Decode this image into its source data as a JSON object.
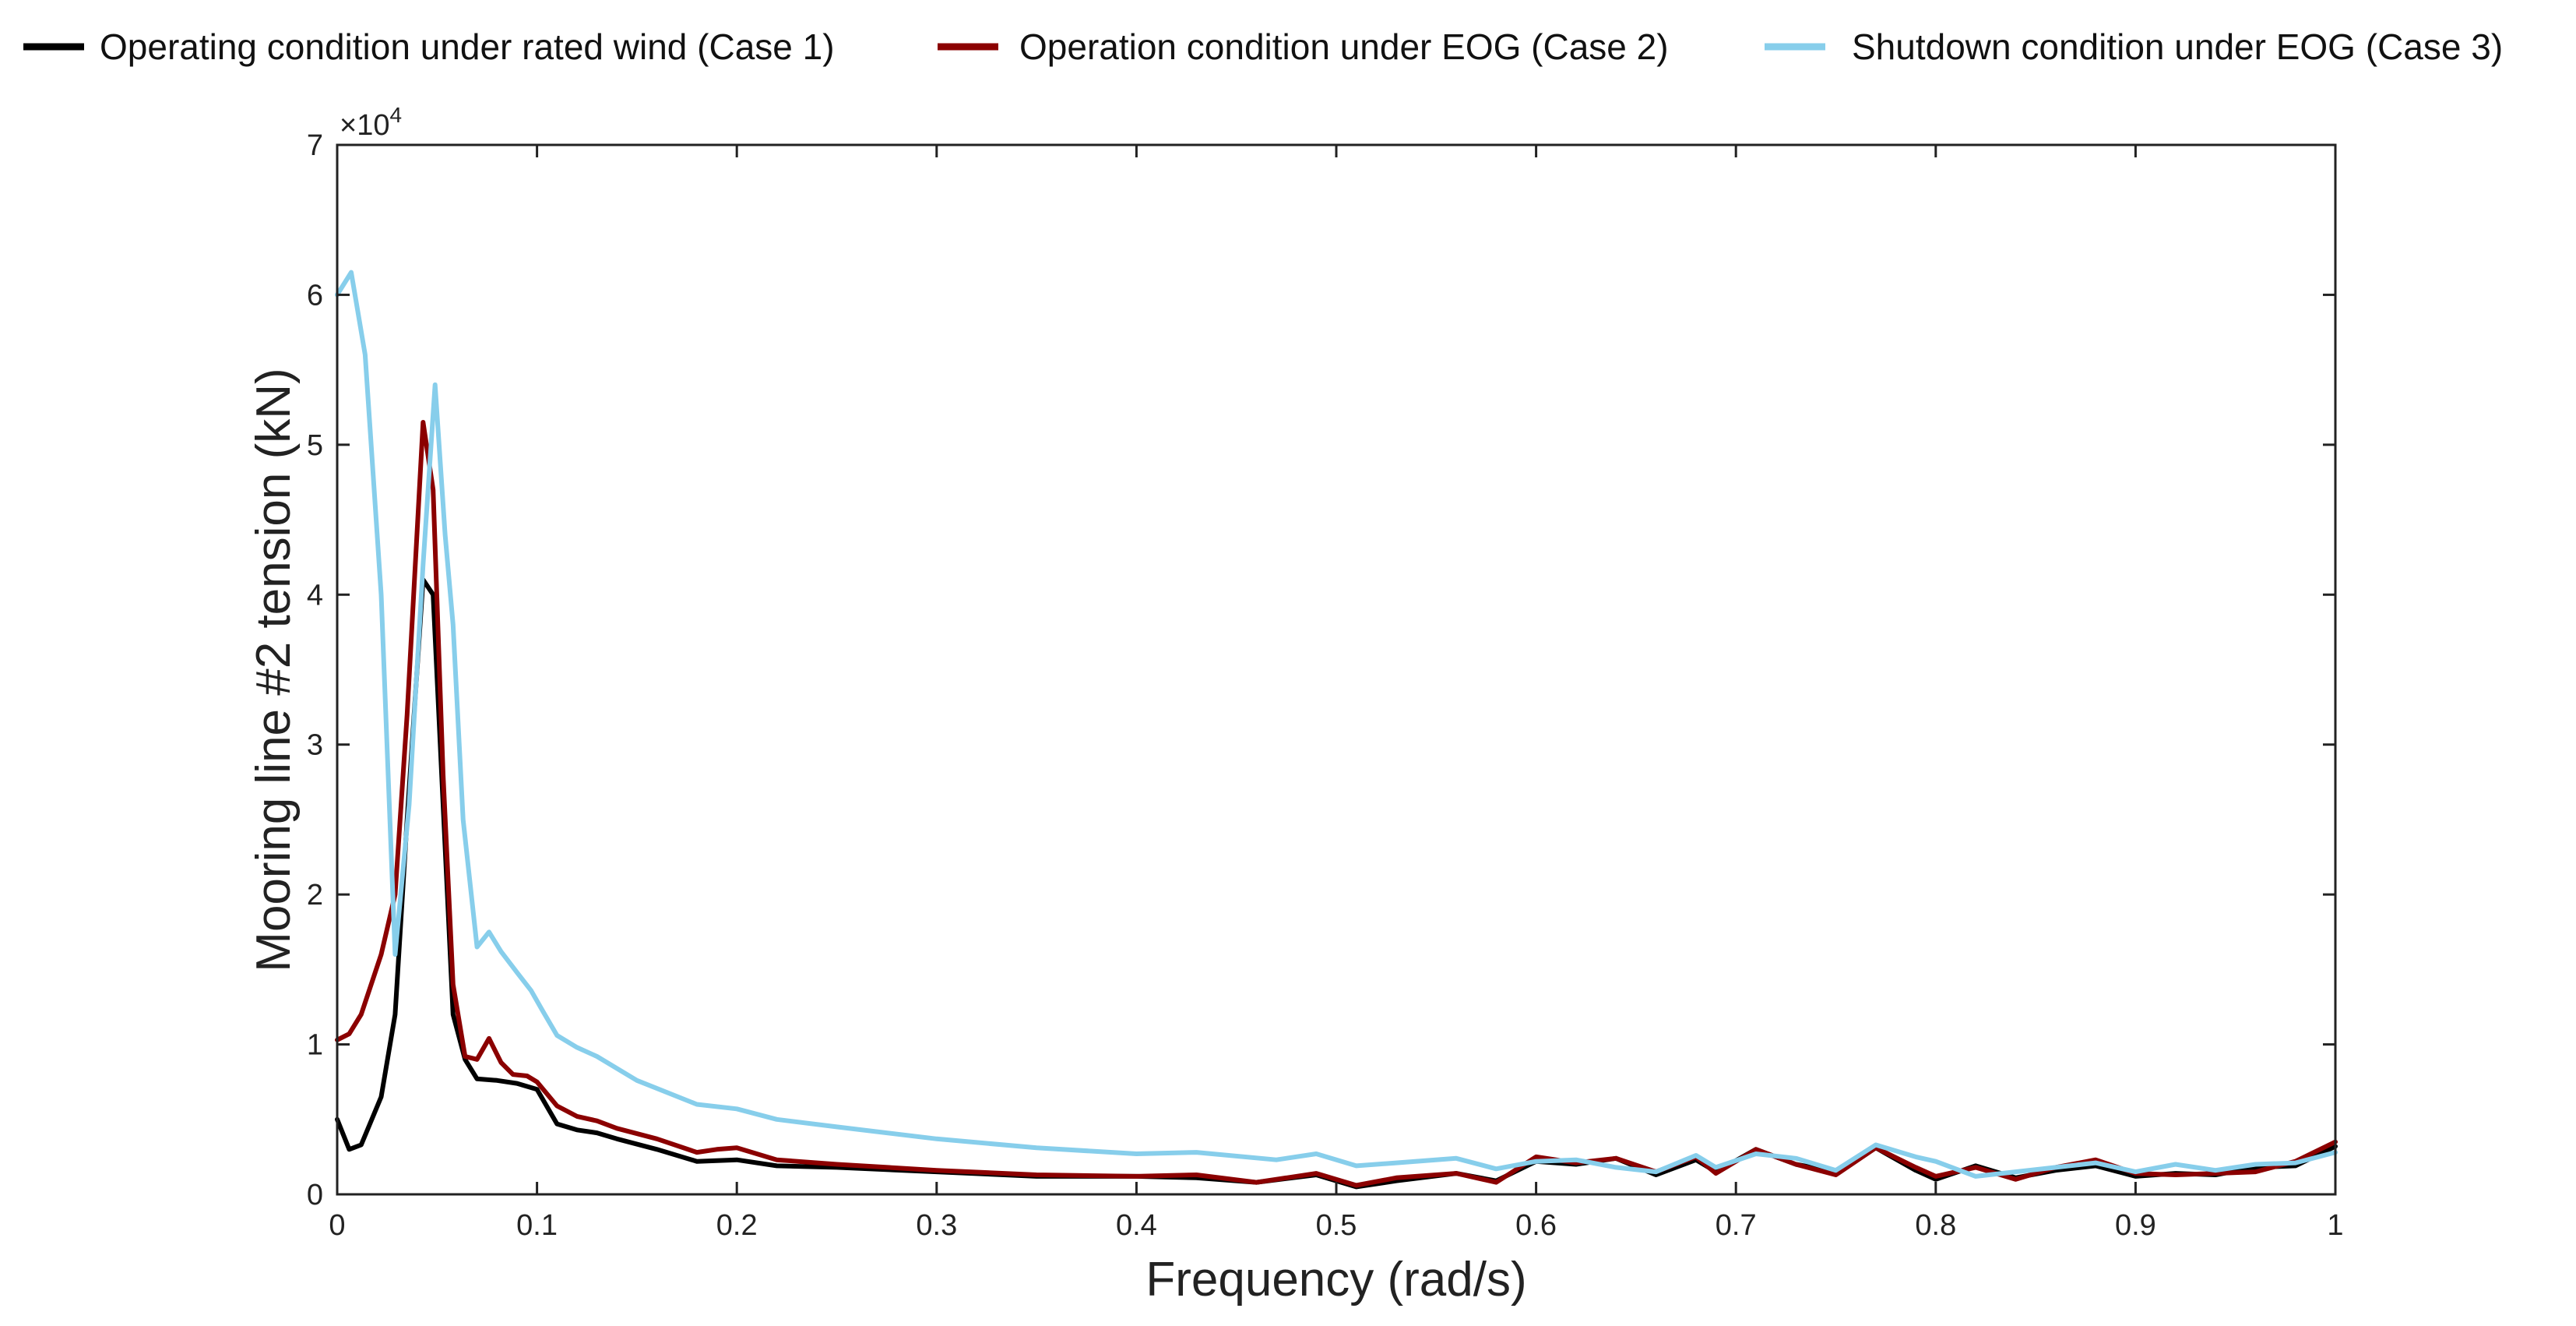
{
  "chart_data": {
    "type": "line",
    "xlabel": "Frequency (rad/s)",
    "ylabel": "Mooring line #2 tension (kN)",
    "xlim": [
      0,
      1
    ],
    "ylim": [
      0,
      70000
    ],
    "x_ticks": [
      0,
      0.1,
      0.2,
      0.3,
      0.4,
      0.5,
      0.6,
      0.7,
      0.8,
      0.9,
      1
    ],
    "x_tick_labels": [
      "0",
      "0.1",
      "0.2",
      "0.3",
      "0.4",
      "0.5",
      "0.6",
      "0.7",
      "0.8",
      "0.9",
      "1"
    ],
    "y_ticks": [
      0,
      10000,
      20000,
      30000,
      40000,
      50000,
      60000,
      70000
    ],
    "y_tick_labels": [
      "0",
      "1",
      "2",
      "3",
      "4",
      "5",
      "6",
      "7"
    ],
    "y_multiplier_label": "×10",
    "y_multiplier_exponent": "4",
    "legend_position": "top",
    "grid": false,
    "series": [
      {
        "name": "Operating condition under rated wind (Case 1)",
        "color": "#000000",
        "x": [
          0,
          0.006,
          0.012,
          0.022,
          0.029,
          0.035,
          0.043,
          0.048,
          0.053,
          0.058,
          0.064,
          0.07,
          0.08,
          0.09,
          0.1,
          0.11,
          0.12,
          0.13,
          0.14,
          0.16,
          0.18,
          0.2,
          0.22,
          0.25,
          0.3,
          0.35,
          0.4,
          0.43,
          0.46,
          0.49,
          0.51,
          0.53,
          0.56,
          0.58,
          0.6,
          0.62,
          0.64,
          0.66,
          0.68,
          0.69,
          0.71,
          0.73,
          0.75,
          0.77,
          0.79,
          0.8,
          0.82,
          0.84,
          0.86,
          0.88,
          0.9,
          0.92,
          0.94,
          0.96,
          0.98,
          1.0
        ],
        "y": [
          5000,
          3000,
          3300,
          6500,
          12000,
          25000,
          41000,
          40000,
          26000,
          12000,
          9000,
          7700,
          7600,
          7400,
          7000,
          4700,
          4300,
          4100,
          3700,
          3000,
          2200,
          2300,
          1900,
          1800,
          1500,
          1200,
          1200,
          1100,
          800,
          1300,
          500,
          900,
          1400,
          900,
          2200,
          2000,
          2400,
          1300,
          2300,
          1500,
          3000,
          2000,
          1500,
          3100,
          1600,
          1000,
          1900,
          1100,
          1600,
          1900,
          1200,
          1400,
          1300,
          1800,
          1900,
          3200
        ]
      },
      {
        "name": "Operation condition under EOG (Case 2)",
        "color": "#8b0000",
        "x": [
          0,
          0.006,
          0.012,
          0.022,
          0.029,
          0.035,
          0.043,
          0.048,
          0.053,
          0.058,
          0.064,
          0.07,
          0.076,
          0.082,
          0.088,
          0.095,
          0.1,
          0.11,
          0.12,
          0.13,
          0.14,
          0.16,
          0.18,
          0.19,
          0.2,
          0.22,
          0.25,
          0.3,
          0.35,
          0.4,
          0.43,
          0.46,
          0.49,
          0.51,
          0.53,
          0.56,
          0.58,
          0.6,
          0.62,
          0.64,
          0.66,
          0.68,
          0.69,
          0.71,
          0.73,
          0.75,
          0.77,
          0.79,
          0.8,
          0.82,
          0.84,
          0.86,
          0.88,
          0.9,
          0.92,
          0.94,
          0.96,
          0.98,
          1.0
        ],
        "y": [
          10300,
          10700,
          12000,
          16000,
          20000,
          32000,
          51500,
          47000,
          28000,
          14000,
          9200,
          9000,
          10400,
          8800,
          8000,
          7900,
          7500,
          5900,
          5200,
          4900,
          4400,
          3700,
          2800,
          3000,
          3100,
          2300,
          2000,
          1600,
          1300,
          1200,
          1300,
          800,
          1400,
          600,
          1100,
          1400,
          800,
          2500,
          2100,
          2400,
          1500,
          2500,
          1400,
          3000,
          2000,
          1300,
          3100,
          1800,
          1200,
          1800,
          1000,
          1800,
          2300,
          1400,
          1300,
          1400,
          1500,
          2200,
          3500
        ]
      },
      {
        "name": "Shutdown condition under EOG (Case 3)",
        "color": "#87ceeb",
        "x": [
          0,
          0.007,
          0.014,
          0.022,
          0.029,
          0.036,
          0.043,
          0.049,
          0.054,
          0.058,
          0.063,
          0.07,
          0.076,
          0.082,
          0.09,
          0.097,
          0.103,
          0.11,
          0.12,
          0.13,
          0.15,
          0.18,
          0.2,
          0.22,
          0.25,
          0.3,
          0.35,
          0.4,
          0.43,
          0.47,
          0.49,
          0.51,
          0.53,
          0.56,
          0.58,
          0.6,
          0.62,
          0.64,
          0.66,
          0.68,
          0.69,
          0.71,
          0.73,
          0.75,
          0.77,
          0.79,
          0.8,
          0.82,
          0.84,
          0.86,
          0.88,
          0.9,
          0.92,
          0.94,
          0.96,
          0.98,
          1.0
        ],
        "y": [
          60000,
          61500,
          56000,
          40000,
          16000,
          26000,
          42000,
          54000,
          44000,
          38000,
          25000,
          16500,
          17500,
          16200,
          14800,
          13600,
          12200,
          10600,
          9800,
          9200,
          7600,
          6000,
          5700,
          5000,
          4500,
          3700,
          3100,
          2700,
          2800,
          2300,
          2700,
          1900,
          2100,
          2400,
          1700,
          2200,
          2300,
          1800,
          1500,
          2600,
          1800,
          2700,
          2400,
          1600,
          3300,
          2500,
          2200,
          1200,
          1500,
          1800,
          2100,
          1500,
          2000,
          1600,
          2000,
          2100,
          2800
        ]
      }
    ]
  }
}
